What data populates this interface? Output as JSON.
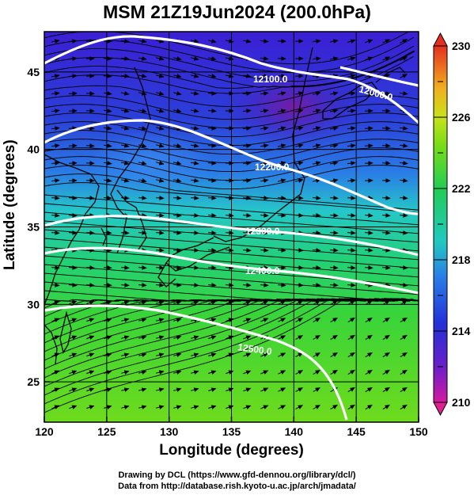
{
  "title": "MSM 21Z19Jun2024 (200.0hPa)",
  "axes": {
    "xlabel": "Longitude (degrees)",
    "ylabel": "Latitude  (degrees)",
    "xlim": [
      120,
      150
    ],
    "ylim": [
      22.4,
      47.6
    ],
    "xticks": [
      120,
      125,
      130,
      135,
      140,
      145,
      150
    ],
    "yticks": [
      25,
      30,
      35,
      40,
      45
    ]
  },
  "colorbar": {
    "min": 210,
    "max": 230,
    "ticks": [
      210,
      214,
      218,
      222,
      226,
      230
    ]
  },
  "contours": [
    {
      "label": "12100.0"
    },
    {
      "label": "12000.0"
    },
    {
      "label": "12200.0"
    },
    {
      "label": "12300.0"
    },
    {
      "label": "12400.0"
    },
    {
      "label": "12500.0"
    }
  ],
  "credits": {
    "line1": "Drawing by DCL (https://www.gfd-dennou.org/library/dcl/)",
    "line2": "Data from http://database.rish.kyoto-u.ac.jp/arch/jmadata/"
  }
}
